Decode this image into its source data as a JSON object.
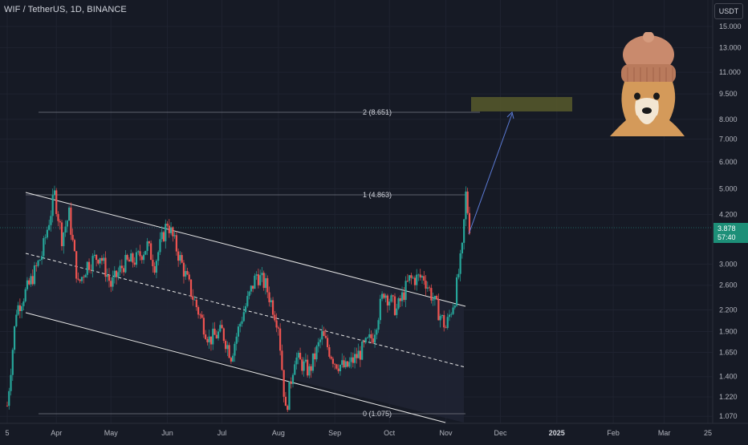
{
  "header": {
    "symbol_title": "WIF / TetherUS, 1D, BINANCE",
    "currency": "USDT"
  },
  "price_scale": {
    "ticks": [
      "15.000",
      "13.000",
      "11.000",
      "9.500",
      "8.000",
      "7.000",
      "6.000",
      "5.000",
      "4.200",
      "3.000",
      "2.600",
      "2.200",
      "1.900",
      "1.650",
      "1.400",
      "1.220",
      "1.070"
    ]
  },
  "time_scale": {
    "ticks": [
      "5",
      "Apr",
      "May",
      "Jun",
      "Jul",
      "Aug",
      "Sep",
      "Oct",
      "Nov",
      "Dec",
      "2025",
      "Feb",
      "Mar",
      "25"
    ]
  },
  "current_price": {
    "value": "3.878",
    "countdown": "57:40",
    "color": "#26a69a"
  },
  "fib_levels": [
    {
      "label": "2 (8.651)"
    },
    {
      "label": "1 (4.863)"
    },
    {
      "label": "0 (1.075)"
    }
  ],
  "colors": {
    "up": "#26a69a",
    "down": "#ef5350",
    "background": "#161a25",
    "target_box": "#575a2c",
    "arrow": "#5b7bd6"
  },
  "annotations": {
    "target_box": "target-zone",
    "arrow": "projection-arrow",
    "avatar": "dogwifhat-mascot"
  },
  "chart_data": {
    "type": "candlestick",
    "symbol": "WIF / TetherUS",
    "interval": "1D",
    "exchange": "BINANCE",
    "y_scale": "log",
    "ylim": [
      1.02,
      17.0
    ],
    "xlim": [
      "2024-03-05",
      "2025-03-25"
    ],
    "grid": true,
    "points": [
      [
        "2024-03-05",
        1.15
      ],
      [
        "2024-03-10",
        2.2
      ],
      [
        "2024-03-17",
        2.6
      ],
      [
        "2024-03-24",
        3.2
      ],
      [
        "2024-03-31",
        4.8
      ],
      [
        "2024-04-04",
        3.6
      ],
      [
        "2024-04-08",
        4.2
      ],
      [
        "2024-04-13",
        2.6
      ],
      [
        "2024-04-18",
        3.0
      ],
      [
        "2024-04-25",
        3.2
      ],
      [
        "2024-05-01",
        2.6
      ],
      [
        "2024-05-08",
        3.0
      ],
      [
        "2024-05-15",
        3.1
      ],
      [
        "2024-05-21",
        3.4
      ],
      [
        "2024-05-25",
        3.0
      ],
      [
        "2024-06-01",
        4.0
      ],
      [
        "2024-06-08",
        3.1
      ],
      [
        "2024-06-15",
        2.4
      ],
      [
        "2024-06-24",
        1.8
      ],
      [
        "2024-07-01",
        1.9
      ],
      [
        "2024-07-06",
        1.62
      ],
      [
        "2024-07-12",
        2.1
      ],
      [
        "2024-07-20",
        2.8
      ],
      [
        "2024-07-25",
        2.6
      ],
      [
        "2024-08-01",
        2.0
      ],
      [
        "2024-08-05",
        1.1
      ],
      [
        "2024-08-10",
        1.6
      ],
      [
        "2024-08-18",
        1.45
      ],
      [
        "2024-08-25",
        1.85
      ],
      [
        "2024-09-01",
        1.55
      ],
      [
        "2024-09-07",
        1.48
      ],
      [
        "2024-09-15",
        1.65
      ],
      [
        "2024-09-22",
        1.85
      ],
      [
        "2024-09-28",
        2.5
      ],
      [
        "2024-10-05",
        2.2
      ],
      [
        "2024-10-12",
        2.7
      ],
      [
        "2024-10-20",
        2.75
      ],
      [
        "2024-10-26",
        2.3
      ],
      [
        "2024-11-01",
        1.95
      ],
      [
        "2024-11-06",
        2.4
      ],
      [
        "2024-11-10",
        3.3
      ],
      [
        "2024-11-12",
        4.8
      ],
      [
        "2024-11-14",
        3.88
      ]
    ]
  }
}
